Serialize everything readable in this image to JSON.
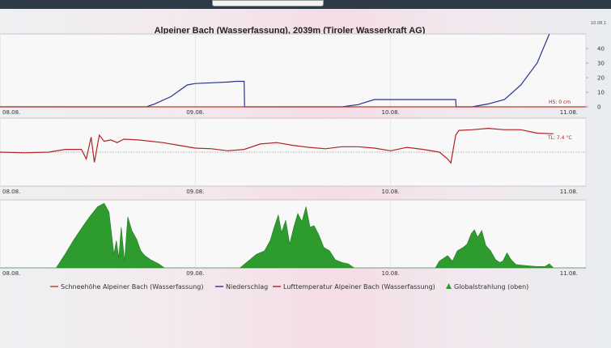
{
  "title": "Alpeiner Bach (Wasserfassung), 2039m (Tiroler Wasserkraft AG)",
  "corner_label": "10.08.1",
  "colors": {
    "snow": "#c0392b",
    "precip": "#27348b",
    "temp": "#b22222",
    "radiation": "#2e9b2e",
    "grid": "#e3e3e3",
    "plot_bg": "#f8f8f8"
  },
  "chart_data": [
    {
      "type": "line",
      "panel": "top",
      "x_ticks": [
        "08.08.",
        "09.08.",
        "10.08.",
        "11.08."
      ],
      "xlim": [
        0,
        72
      ],
      "ylim": [
        0,
        50
      ],
      "y_ticks": [
        0,
        10,
        20,
        30,
        40
      ],
      "annotation": "HS: 0 cm",
      "series": [
        {
          "name": "Niederschlag",
          "color_key": "precip",
          "x": [
            0,
            18,
            19,
            21,
            23,
            24,
            26,
            28,
            29,
            30,
            30.05,
            42,
            44,
            46,
            47,
            48,
            56,
            56.05,
            58,
            60,
            62,
            64,
            66,
            67.5
          ],
          "y": [
            0,
            0,
            2,
            7,
            15,
            16,
            16.5,
            17,
            17.5,
            17.5,
            0,
            0,
            1.5,
            5,
            5,
            5,
            5,
            0,
            0,
            2,
            5,
            15,
            30,
            50
          ]
        },
        {
          "name": "Schneehöhe Alpeiner Bach (Wasserfassung)",
          "color_key": "snow",
          "x": [
            0,
            72
          ],
          "y": [
            0,
            0
          ]
        }
      ]
    },
    {
      "type": "line",
      "panel": "middle",
      "x_ticks": [
        "08.08.",
        "09.08.",
        "10.08.",
        "11.08."
      ],
      "xlim": [
        0,
        72
      ],
      "ylim": [
        0,
        10
      ],
      "annotation": "TL: 7.4 °C",
      "series": [
        {
          "name": "Lufttemperatur Alpeiner Bach (Wasserfassung)",
          "color_key": "temp",
          "x": [
            0,
            3,
            6,
            8,
            10,
            10.6,
            11.2,
            11.6,
            12.2,
            12.8,
            13.6,
            14.4,
            15.2,
            17,
            20,
            22,
            24,
            26,
            28,
            30,
            32,
            34,
            36,
            38,
            40,
            42,
            44,
            46,
            48,
            50,
            52,
            54,
            55,
            55.4,
            56,
            56.4,
            58,
            60,
            62,
            64,
            66,
            68
          ],
          "y": [
            5,
            4.9,
            5,
            5.4,
            5.4,
            4,
            7.2,
            3.5,
            7.5,
            6.6,
            6.8,
            6.4,
            6.9,
            6.8,
            6.4,
            6,
            5.6,
            5.5,
            5.2,
            5.4,
            6.2,
            6.4,
            6.0,
            5.7,
            5.5,
            5.8,
            5.8,
            5.6,
            5.2,
            5.7,
            5.4,
            5,
            4,
            3.4,
            7.5,
            8.2,
            8.3,
            8.5,
            8.3,
            8.3,
            7.8,
            7.7
          ]
        }
      ]
    },
    {
      "type": "area",
      "panel": "bottom",
      "x_ticks": [
        "08.08.",
        "09.08.",
        "10.08.",
        "11.08."
      ],
      "xlim": [
        0,
        72
      ],
      "ylim": [
        0,
        100
      ],
      "series": [
        {
          "name": "Globalstrahlung (oben)",
          "color_key": "radiation",
          "x": [
            0,
            6.9,
            8,
            9,
            10,
            11,
            12,
            12.8,
            13.4,
            14,
            14.3,
            14.6,
            14.9,
            15.3,
            15.7,
            16.2,
            16.8,
            17.3,
            17.8,
            18.5,
            19.5,
            20.2,
            24,
            29.5,
            30.5,
            31.5,
            32.5,
            33.2,
            33.7,
            34.2,
            34.6,
            35.1,
            35.6,
            36.1,
            36.6,
            37.1,
            37.6,
            38.1,
            38.6,
            39.2,
            39.8,
            40.5,
            41.2,
            42,
            42.8,
            43.5,
            48,
            53.5,
            54,
            55,
            55.6,
            56.2,
            56.9,
            57.4,
            57.9,
            58.3,
            58.7,
            59.2,
            59.7,
            60.3,
            60.9,
            61.4,
            61.8,
            62.3,
            62.8,
            63.4,
            64,
            65,
            66,
            67,
            67.5,
            68,
            72
          ],
          "y": [
            0,
            0,
            20,
            40,
            58,
            75,
            90,
            95,
            82,
            20,
            40,
            15,
            60,
            10,
            75,
            55,
            42,
            25,
            18,
            12,
            6,
            0,
            0,
            0,
            10,
            20,
            25,
            40,
            60,
            78,
            52,
            70,
            35,
            60,
            80,
            68,
            90,
            60,
            62,
            48,
            30,
            25,
            12,
            8,
            6,
            0,
            0,
            0,
            10,
            18,
            10,
            25,
            30,
            35,
            50,
            56,
            45,
            55,
            33,
            25,
            12,
            8,
            10,
            22,
            12,
            5,
            4,
            3,
            2,
            2,
            6,
            0,
            0
          ]
        }
      ]
    }
  ],
  "legend": [
    {
      "label": "Schneehöhe Alpeiner Bach (Wasserfassung)",
      "color_key": "snow",
      "symbol": "line"
    },
    {
      "label": "Niederschlag",
      "color_key": "precip",
      "symbol": "line"
    },
    {
      "label": "Lufttemperatur Alpeiner Bach (Wasserfassung)",
      "color_key": "temp",
      "symbol": "line"
    },
    {
      "label": "Globalstrahlung (oben)",
      "color_key": "radiation",
      "symbol": "triangle"
    }
  ]
}
